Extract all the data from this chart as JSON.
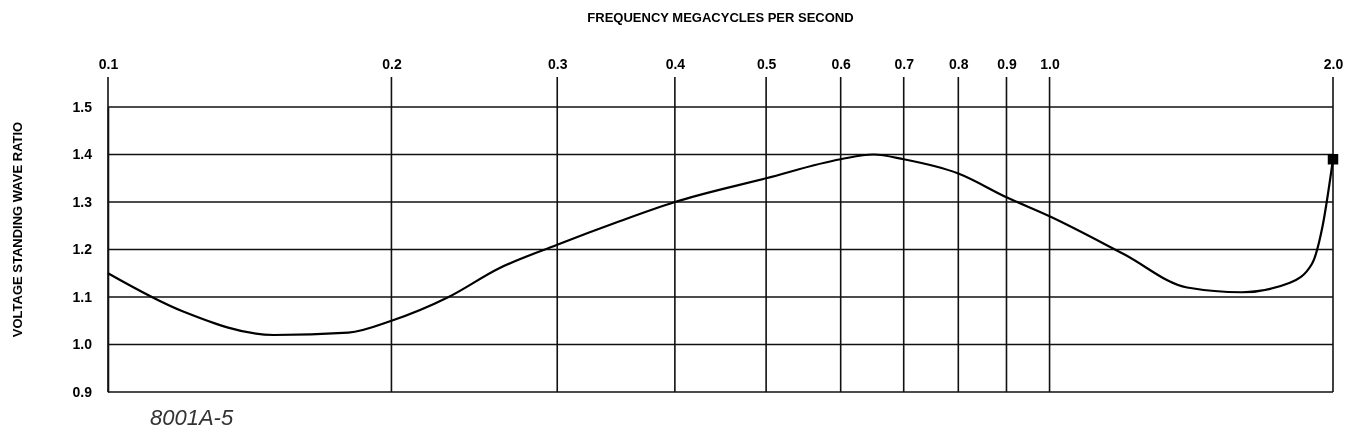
{
  "chart_data": {
    "type": "line",
    "xlabel": "FREQUENCY MEGACYCLES PER SECOND",
    "ylabel": "VOLTAGE STANDING WAVE RATIO",
    "log": "x",
    "grid": true,
    "xlim": [
      0.1,
      2
    ],
    "xticks": [
      0.1,
      0.2,
      0.3,
      0.4,
      0.5,
      0.6,
      0.7,
      0.8,
      0.9,
      {
        "value": 1,
        "label": "1.0"
      },
      {
        "value": 2,
        "label": "2.0"
      }
    ],
    "ylim": [
      0.9,
      1.5
    ],
    "yticks": [
      0.9,
      {
        "value": 1,
        "label": "1.0"
      },
      1.1,
      1.2,
      1.3,
      1.4,
      1.5
    ],
    "series": [
      {
        "color": "#000000",
        "marker": "none",
        "x": [
          0.1,
          0.12,
          0.15,
          0.18,
          0.2,
          0.23,
          0.26,
          0.3,
          0.35,
          0.4,
          0.5,
          0.6,
          0.65,
          0.7,
          0.8,
          0.9,
          1,
          1.2,
          1.4,
          1.6,
          1.8,
          1.9,
          1.95,
          2
        ],
        "values": [
          1.15,
          1.07,
          1.02,
          1.025,
          1.05,
          1.1,
          1.16,
          1.21,
          1.26,
          1.3,
          1.35,
          1.39,
          1.4,
          1.39,
          1.36,
          1.31,
          1.27,
          1.19,
          1.12,
          1.11,
          1.13,
          1.17,
          1.25,
          1.39
        ]
      },
      {
        "type": "scatter",
        "color": "#000000",
        "marker": "square",
        "x": [
          2
        ],
        "values": [
          1.39
        ]
      }
    ],
    "annotations": [
      "8001A-5"
    ]
  }
}
